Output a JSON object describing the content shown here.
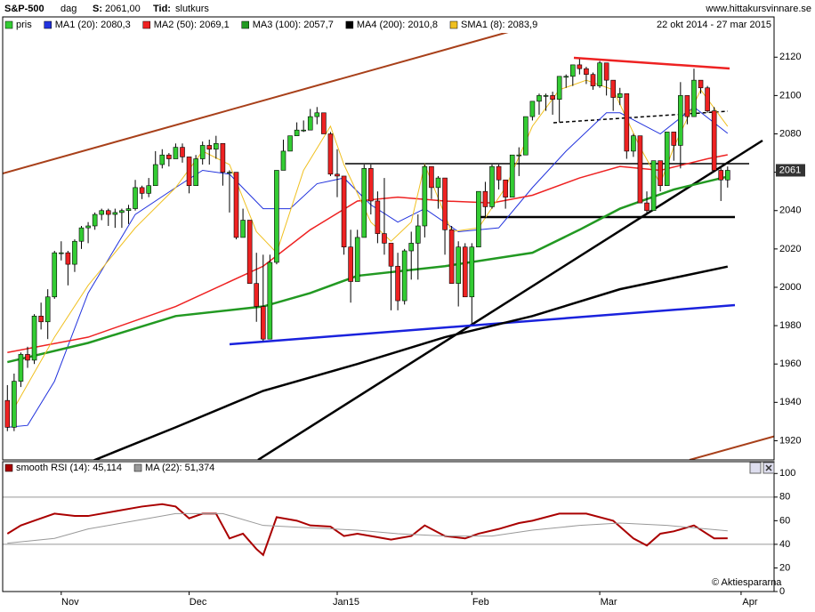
{
  "header": {
    "symbol": "S&P-500",
    "period": "dag",
    "price_label": "S:",
    "price": "2061,00",
    "time_label": "Tid:",
    "time": "slutkurs",
    "site": "www.hittakursvinnare.se",
    "date_range": "22 okt 2014 - 27 mar 2015"
  },
  "chart_data": [
    {
      "type": "candlestick",
      "name": "pris",
      "up_color": "#33cc33",
      "down_color": "#ee2222",
      "open": [
        1941,
        1927,
        1951,
        1965,
        1962,
        1985,
        1982,
        1995,
        2018,
        2018,
        2012,
        2024,
        2031,
        2032,
        2038,
        2040,
        2038,
        2039,
        2040,
        2041,
        2052,
        2049,
        2053,
        2064,
        2069,
        2067,
        2073,
        2068,
        2053,
        2067,
        2074,
        2072,
        2075,
        2060,
        2060,
        2026,
        2035,
        2002,
        1990,
        1973,
        2013,
        2061,
        2071,
        2079,
        2082,
        2082,
        2089,
        2091,
        2080,
        2059,
        2058,
        2021,
        2003,
        2026,
        2062,
        2045,
        2028,
        2023,
        2011,
        1993,
        2019,
        2023,
        2032,
        2063,
        2052,
        2057,
        2030,
        2002,
        2021,
        1995,
        2021,
        2050,
        2042,
        2063,
        2056,
        2047,
        2069,
        2069,
        2089,
        2097,
        2100,
        2100,
        2098,
        2110,
        2110,
        2116,
        2114,
        2111,
        2105,
        2117,
        2108,
        2099,
        2101,
        2071,
        2079,
        2044,
        2040,
        2066,
        2053,
        2081,
        2074,
        2100,
        2089,
        2108,
        2104,
        2092,
        2061,
        2056
      ],
      "high": [
        1949,
        1955,
        1966,
        1969,
        1986,
        1992,
        1999,
        2019,
        2024,
        2019,
        2025,
        2032,
        2034,
        2039,
        2041,
        2041,
        2041,
        2041,
        2043,
        2056,
        2053,
        2057,
        2071,
        2072,
        2070,
        2075,
        2075,
        2068,
        2069,
        2076,
        2077,
        2079,
        2075,
        2061,
        2060,
        2041,
        2035,
        2018,
        2017,
        2017,
        2061,
        2077,
        2079,
        2086,
        2087,
        2093,
        2094,
        2091,
        2081,
        2072,
        2058,
        2030,
        2030,
        2064,
        2064,
        2050,
        2057,
        2023,
        2018,
        2020,
        2029,
        2038,
        2064,
        2063,
        2058,
        2057,
        2032,
        2024,
        2023,
        2023,
        2050,
        2055,
        2064,
        2064,
        2056,
        2069,
        2073,
        2089,
        2097,
        2101,
        2101,
        2102,
        2110,
        2111,
        2116,
        2119,
        2115,
        2112,
        2118,
        2117,
        2108,
        2104,
        2101,
        2080,
        2079,
        2050,
        2066,
        2066,
        2081,
        2081,
        2107,
        2100,
        2114,
        2108,
        2105,
        2094,
        2063,
        2063
      ],
      "low": [
        1925,
        1925,
        1948,
        1958,
        1960,
        1978,
        1973,
        1994,
        2014,
        2001,
        2008,
        2020,
        2023,
        2030,
        2035,
        2032,
        2031,
        2031,
        2033,
        2040,
        2046,
        2047,
        2053,
        2062,
        2063,
        2067,
        2065,
        2049,
        2053,
        2064,
        2064,
        2067,
        2053,
        2039,
        2025,
        2026,
        2002,
        1982,
        1972,
        1973,
        2012,
        2061,
        2071,
        2079,
        2081,
        2082,
        2085,
        2080,
        2058,
        2047,
        2017,
        1992,
        2003,
        2026,
        2038,
        2023,
        2017,
        1988,
        1988,
        1991,
        2004,
        2004,
        2026,
        2046,
        2041,
        2017,
        2002,
        1990,
        1995,
        1981,
        2021,
        2036,
        2041,
        2051,
        2041,
        2047,
        2058,
        2069,
        2087,
        2090,
        2092,
        2090,
        2086,
        2104,
        2105,
        2111,
        2106,
        2103,
        2104,
        2100,
        2092,
        2095,
        2067,
        2068,
        2044,
        2039,
        2040,
        2050,
        2053,
        2066,
        2062,
        2085,
        2089,
        2101,
        2091,
        2061,
        2045,
        2052
      ],
      "close": [
        1927,
        1951,
        1965,
        1962,
        1985,
        1982,
        1995,
        2018,
        2018,
        2012,
        2024,
        2031,
        2032,
        2038,
        2040,
        2038,
        2039,
        2040,
        2041,
        2052,
        2049,
        2053,
        2064,
        2069,
        2067,
        2073,
        2068,
        2053,
        2067,
        2074,
        2072,
        2075,
        2060,
        2060,
        2026,
        2035,
        2002,
        1990,
        1973,
        2013,
        2061,
        2071,
        2079,
        2082,
        2082,
        2089,
        2091,
        2080,
        2059,
        2058,
        2021,
        2003,
        2026,
        2062,
        2045,
        2028,
        2023,
        2011,
        1993,
        2019,
        2023,
        2032,
        2063,
        2052,
        2057,
        2030,
        2002,
        2021,
        1995,
        2021,
        2050,
        2042,
        2063,
        2056,
        2047,
        2069,
        2069,
        2089,
        2097,
        2100,
        2100,
        2098,
        2110,
        2110,
        2116,
        2114,
        2111,
        2105,
        2117,
        2108,
        2099,
        2101,
        2071,
        2079,
        2044,
        2040,
        2066,
        2053,
        2081,
        2074,
        2100,
        2089,
        2108,
        2104,
        2092,
        2061,
        2056,
        2061
      ],
      "series": [
        {
          "name": "MA1 (20): 2080,3",
          "color": "#2233dd",
          "x": [
            0,
            3,
            7,
            12,
            19,
            25,
            29,
            33,
            38,
            42,
            46,
            50,
            54,
            58,
            62,
            67,
            73,
            78,
            83,
            89,
            91,
            97,
            102,
            107
          ],
          "values": [
            1927,
            1928,
            1951,
            1997,
            2038,
            2052,
            2061,
            2059,
            2041,
            2041,
            2054,
            2057,
            2043,
            2034,
            2041,
            2029,
            2031,
            2052,
            2071,
            2091,
            2091,
            2080,
            2094,
            2080.3
          ]
        },
        {
          "name": "MA2 (50): 2069,1",
          "color": "#ee2222",
          "x": [
            0,
            12,
            25,
            38,
            45,
            52,
            58,
            65,
            72,
            78,
            85,
            91,
            97,
            104,
            107
          ],
          "values": [
            1966,
            1974,
            1990,
            2011,
            2030,
            2045,
            2047,
            2045,
            2044,
            2048,
            2057,
            2063,
            2061,
            2067,
            2069.1
          ]
        },
        {
          "name": "MA3 (100): 2057,7",
          "color": "#229922",
          "x": [
            0,
            12,
            25,
            38,
            45,
            52,
            65,
            78,
            85,
            91,
            99,
            107
          ],
          "values": [
            1961,
            1971,
            1985,
            1990,
            1997,
            2006,
            2011,
            2018,
            2030,
            2041,
            2051,
            2057.7
          ]
        },
        {
          "name": "MA4 (200): 2010,8",
          "color": "#000000",
          "x": [
            10,
            13,
            25,
            38,
            52,
            65,
            78,
            91,
            107
          ],
          "values": [
            1905,
            1910,
            1927,
            1946,
            1960,
            1974,
            1985,
            1999,
            2010.8
          ]
        },
        {
          "name": "SMA1 (8): 2083,9",
          "color": "#f0c020",
          "x": [
            1,
            7,
            12,
            19,
            25,
            29,
            33,
            37,
            40,
            44,
            48,
            50,
            54,
            57,
            60,
            62,
            66,
            70,
            74,
            78,
            82,
            86,
            90,
            94,
            97,
            99,
            103,
            107
          ],
          "values": [
            1937,
            1974,
            2001,
            2031,
            2052,
            2071,
            2064,
            2029,
            2018,
            2061,
            2084,
            2064,
            2034,
            2024,
            2034,
            2064,
            2029,
            2031,
            2052,
            2084,
            2103,
            2108,
            2103,
            2073,
            2054,
            2073,
            2103,
            2083.9
          ]
        }
      ],
      "xlim": [
        -0.7,
        113.9
      ],
      "ylim": [
        1910,
        2141
      ],
      "yticks": [
        1920,
        1940,
        1960,
        1980,
        2000,
        2020,
        2040,
        2060,
        2080,
        2100,
        2120
      ],
      "last_value_label": "2061"
    },
    {
      "type": "line",
      "series": [
        {
          "name": "smooth RSI (14): 45,114",
          "color": "#aa0000",
          "x": [
            0,
            2,
            4,
            7,
            10,
            12,
            16,
            20,
            23,
            25,
            27,
            29,
            31,
            33,
            35,
            37,
            38,
            40,
            43,
            45,
            48,
            50,
            52,
            54,
            57,
            60,
            62,
            65,
            68,
            70,
            73,
            76,
            78,
            82,
            86,
            90,
            93,
            95,
            97,
            99,
            102,
            105,
            107
          ],
          "values": [
            49,
            56,
            60,
            66,
            64,
            64,
            68,
            72,
            74,
            72,
            62,
            66,
            66,
            45,
            49,
            36,
            31,
            63,
            60,
            56,
            55,
            47,
            49,
            47,
            44,
            47,
            56,
            47,
            45,
            49,
            53,
            58,
            60,
            66,
            66,
            60,
            45,
            39,
            49,
            51,
            56,
            45,
            45.1
          ]
        },
        {
          "name": "MA (22): 51,374",
          "color": "#999999",
          "x": [
            0,
            7,
            12,
            19,
            25,
            32,
            38,
            45,
            52,
            58,
            65,
            72,
            78,
            85,
            91,
            98,
            107
          ],
          "values": [
            41,
            45,
            53,
            60,
            66,
            66,
            56,
            54,
            52,
            49,
            47,
            47,
            52,
            56,
            58,
            56,
            51.4
          ]
        }
      ],
      "xlim": [
        -0.7,
        113.9
      ],
      "ylim": [
        0,
        110
      ],
      "yticks": [
        0,
        20,
        40,
        60,
        80,
        100
      ],
      "reference_lines": [
        40,
        80
      ],
      "xticks": [
        {
          "value": 8,
          "label": "Nov"
        },
        {
          "value": 27,
          "label": "Dec"
        },
        {
          "value": 49,
          "label": "Jan15"
        },
        {
          "value": 69,
          "label": "Feb"
        },
        {
          "value": 88,
          "label": "Mar"
        },
        {
          "value": 109,
          "label": "Apr"
        }
      ],
      "credit": "© Aktiespararna"
    }
  ]
}
